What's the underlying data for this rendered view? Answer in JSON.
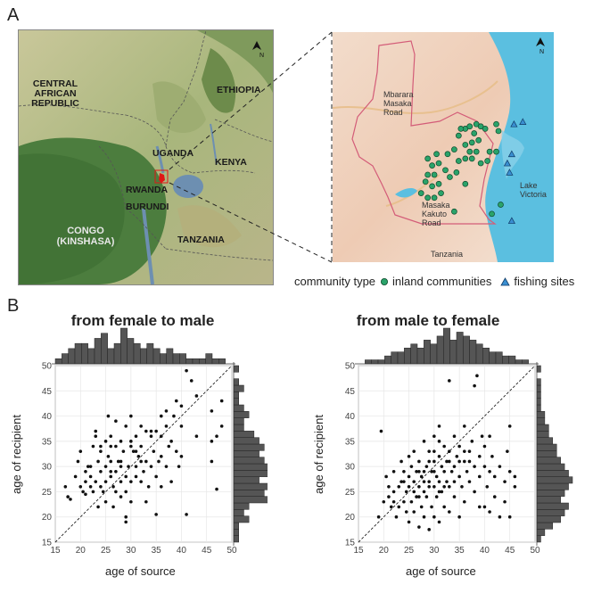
{
  "panels": {
    "a": "A",
    "b": "B"
  },
  "map_left": {
    "countries": [
      "CENTRAL AFRICAN REPUBLIC",
      "ETHIOPIA",
      "UGANDA",
      "KENYA",
      "CONGO (KINSHASA)",
      "RWANDA",
      "BURUNDI",
      "TANZANIA"
    ]
  },
  "map_right": {
    "labels": {
      "road1": "Mbarara Masaka Road",
      "road2": "Masaka Kakuto Road",
      "lake": "Lake Victoria",
      "country": "Tanzania"
    },
    "north": "N",
    "inland_points": [
      [
        0.57,
        0.45
      ],
      [
        0.6,
        0.42
      ],
      [
        0.62,
        0.41
      ],
      [
        0.65,
        0.4
      ],
      [
        0.67,
        0.41
      ],
      [
        0.69,
        0.42
      ],
      [
        0.6,
        0.49
      ],
      [
        0.63,
        0.48
      ],
      [
        0.66,
        0.47
      ],
      [
        0.55,
        0.51
      ],
      [
        0.52,
        0.53
      ],
      [
        0.47,
        0.53
      ],
      [
        0.43,
        0.55
      ],
      [
        0.45,
        0.58
      ],
      [
        0.48,
        0.57
      ],
      [
        0.51,
        0.6
      ],
      [
        0.46,
        0.62
      ],
      [
        0.42,
        0.65
      ],
      [
        0.45,
        0.67
      ],
      [
        0.4,
        0.7
      ],
      [
        0.43,
        0.72
      ],
      [
        0.46,
        0.72
      ],
      [
        0.49,
        0.7
      ],
      [
        0.53,
        0.63
      ],
      [
        0.57,
        0.56
      ],
      [
        0.6,
        0.55
      ],
      [
        0.62,
        0.52
      ],
      [
        0.65,
        0.52
      ],
      [
        0.43,
        0.62
      ],
      [
        0.58,
        0.42
      ],
      [
        0.64,
        0.44
      ],
      [
        0.71,
        0.52
      ],
      [
        0.67,
        0.57
      ],
      [
        0.74,
        0.4
      ],
      [
        0.56,
        0.61
      ],
      [
        0.55,
        0.78
      ],
      [
        0.63,
        0.55
      ],
      [
        0.7,
        0.56
      ],
      [
        0.75,
        0.43
      ],
      [
        0.74,
        0.52
      ],
      [
        0.72,
        0.79
      ],
      [
        0.76,
        0.75
      ],
      [
        0.6,
        0.66
      ],
      [
        0.48,
        0.66
      ]
    ],
    "fishing_points": [
      [
        0.82,
        0.4
      ],
      [
        0.81,
        0.53
      ],
      [
        0.8,
        0.61
      ],
      [
        0.81,
        0.82
      ],
      [
        0.86,
        0.39
      ],
      [
        0.79,
        0.57
      ]
    ]
  },
  "legend": {
    "title": "community type",
    "inland": "inland communities",
    "fishing": "fishing sites",
    "inland_color": "#2aa36a",
    "fishing_color": "#3a8fd1"
  },
  "chart_data": [
    {
      "type": "scatter",
      "title": "from female to male",
      "xlabel": "age of source",
      "ylabel": "age of recipient",
      "xlim": [
        15,
        50
      ],
      "ylim": [
        15,
        50
      ],
      "xticks": [
        15,
        20,
        25,
        30,
        35,
        40,
        45,
        50
      ],
      "yticks": [
        15,
        20,
        25,
        30,
        35,
        40,
        45,
        50
      ],
      "points": [
        [
          17,
          26
        ],
        [
          17.5,
          24
        ],
        [
          18,
          23.5
        ],
        [
          19,
          28
        ],
        [
          19.5,
          31
        ],
        [
          20,
          26
        ],
        [
          20,
          33
        ],
        [
          20.5,
          25
        ],
        [
          21,
          29
        ],
        [
          21,
          27
        ],
        [
          21,
          24.5
        ],
        [
          21.5,
          30
        ],
        [
          22,
          26
        ],
        [
          22,
          28
        ],
        [
          22.5,
          34
        ],
        [
          22.5,
          25
        ],
        [
          23,
          37
        ],
        [
          23,
          36
        ],
        [
          23,
          27
        ],
        [
          23.5,
          31
        ],
        [
          23.5,
          22
        ],
        [
          24,
          26
        ],
        [
          24,
          33
        ],
        [
          24,
          29
        ],
        [
          24.5,
          25
        ],
        [
          25,
          35
        ],
        [
          25,
          30
        ],
        [
          25,
          27
        ],
        [
          25,
          23
        ],
        [
          25.5,
          40
        ],
        [
          25.5,
          32
        ],
        [
          26,
          28
        ],
        [
          26,
          29
        ],
        [
          26,
          36
        ],
        [
          26,
          31
        ],
        [
          26.5,
          26
        ],
        [
          26.5,
          22
        ],
        [
          27,
          34
        ],
        [
          27,
          29
        ],
        [
          27,
          25
        ],
        [
          27,
          39
        ],
        [
          27.5,
          31
        ],
        [
          28,
          35
        ],
        [
          28,
          27
        ],
        [
          28,
          30
        ],
        [
          28,
          24
        ],
        [
          28.5,
          33
        ],
        [
          29,
          38
        ],
        [
          29,
          25
        ],
        [
          29,
          20
        ],
        [
          29,
          19
        ],
        [
          29.5,
          30
        ],
        [
          30,
          35
        ],
        [
          30,
          27
        ],
        [
          30,
          40
        ],
        [
          30,
          23
        ],
        [
          30.5,
          33
        ],
        [
          31,
          28
        ],
        [
          31,
          36
        ],
        [
          31,
          30
        ],
        [
          31.5,
          32
        ],
        [
          32,
          38
        ],
        [
          32,
          27
        ],
        [
          32,
          34
        ],
        [
          32.5,
          29
        ],
        [
          33,
          31
        ],
        [
          33,
          37
        ],
        [
          33,
          23
        ],
        [
          33.5,
          26
        ],
        [
          34,
          37
        ],
        [
          34,
          30
        ],
        [
          34.5,
          33
        ],
        [
          35,
          37
        ],
        [
          35,
          28
        ],
        [
          35,
          20.5
        ],
        [
          35.5,
          31
        ],
        [
          36,
          32
        ],
        [
          36,
          36
        ],
        [
          36,
          26
        ],
        [
          37,
          38
        ],
        [
          37,
          30
        ],
        [
          37.5,
          34
        ],
        [
          38,
          35
        ],
        [
          38,
          27
        ],
        [
          38.5,
          40
        ],
        [
          39,
          43
        ],
        [
          39,
          33
        ],
        [
          39.5,
          30
        ],
        [
          40,
          38
        ],
        [
          40,
          42
        ],
        [
          40,
          32
        ],
        [
          41,
          49
        ],
        [
          41,
          20.5
        ],
        [
          42,
          47
        ],
        [
          43,
          44
        ],
        [
          43,
          36
        ],
        [
          46,
          41
        ],
        [
          46,
          35
        ],
        [
          46,
          31
        ],
        [
          47,
          36
        ],
        [
          47,
          25.5
        ],
        [
          48,
          43
        ],
        [
          48,
          38
        ],
        [
          30,
          34
        ],
        [
          34,
          36
        ],
        [
          36,
          40
        ],
        [
          24,
          34
        ],
        [
          22,
          30
        ],
        [
          31,
          33
        ],
        [
          28,
          31
        ],
        [
          26,
          34
        ],
        [
          37,
          41
        ],
        [
          32,
          31
        ],
        [
          29,
          28
        ]
      ],
      "x_hist": [
        1,
        2,
        3,
        4,
        4,
        3,
        5,
        6,
        3,
        4,
        7,
        5,
        4,
        3,
        4,
        3,
        2,
        3,
        2,
        2,
        1,
        1,
        1,
        2,
        1,
        1,
        0
      ],
      "y_hist": [
        1,
        1,
        1,
        3,
        2,
        3,
        7,
        6,
        7,
        5,
        7,
        7,
        6,
        5,
        6,
        5,
        4,
        2,
        2,
        3,
        2,
        1,
        1,
        2,
        1,
        0,
        1
      ]
    },
    {
      "type": "scatter",
      "title": "from male to female",
      "xlabel": "age of source",
      "ylabel": "age of recipient",
      "xlim": [
        15,
        50
      ],
      "ylim": [
        15,
        50
      ],
      "xticks": [
        15,
        20,
        25,
        30,
        35,
        40,
        45,
        50
      ],
      "yticks": [
        15,
        20,
        25,
        30,
        35,
        40,
        45,
        50
      ],
      "points": [
        [
          19,
          20
        ],
        [
          19.5,
          37
        ],
        [
          20,
          23
        ],
        [
          20.5,
          28
        ],
        [
          21,
          24
        ],
        [
          21,
          26
        ],
        [
          21.5,
          22
        ],
        [
          22,
          29
        ],
        [
          22,
          25
        ],
        [
          22.5,
          20
        ],
        [
          23,
          26
        ],
        [
          23,
          22
        ],
        [
          23.5,
          31
        ],
        [
          23.5,
          27
        ],
        [
          24,
          23
        ],
        [
          24,
          29
        ],
        [
          24.5,
          21
        ],
        [
          24.5,
          25
        ],
        [
          25,
          28
        ],
        [
          25,
          32
        ],
        [
          25,
          19
        ],
        [
          25.5,
          23
        ],
        [
          25.5,
          30
        ],
        [
          26,
          27
        ],
        [
          26,
          21
        ],
        [
          26,
          33
        ],
        [
          26.5,
          24
        ],
        [
          26.5,
          29
        ],
        [
          27,
          26
        ],
        [
          27,
          18
        ],
        [
          27,
          31
        ],
        [
          27.5,
          22
        ],
        [
          27.5,
          28
        ],
        [
          28,
          25
        ],
        [
          28,
          35
        ],
        [
          28,
          20
        ],
        [
          28.5,
          30
        ],
        [
          28.5,
          24
        ],
        [
          29,
          27
        ],
        [
          29,
          33
        ],
        [
          29,
          17.5
        ],
        [
          29.5,
          22
        ],
        [
          29.5,
          29
        ],
        [
          30,
          26
        ],
        [
          30,
          31
        ],
        [
          30,
          36
        ],
        [
          30,
          20
        ],
        [
          30.5,
          28
        ],
        [
          30.5,
          24
        ],
        [
          31,
          32
        ],
        [
          31,
          27
        ],
        [
          31,
          38
        ],
        [
          31,
          19
        ],
        [
          31.5,
          25
        ],
        [
          31.5,
          30
        ],
        [
          32,
          29
        ],
        [
          32,
          34
        ],
        [
          32,
          22
        ],
        [
          32.5,
          27
        ],
        [
          32.5,
          31
        ],
        [
          33,
          47
        ],
        [
          33,
          26
        ],
        [
          33,
          33
        ],
        [
          33,
          21
        ],
        [
          33.5,
          29
        ],
        [
          34,
          30
        ],
        [
          34,
          36
        ],
        [
          34,
          24
        ],
        [
          34.5,
          32
        ],
        [
          35,
          28
        ],
        [
          35,
          34
        ],
        [
          35,
          20
        ],
        [
          35.5,
          26
        ],
        [
          36,
          31
        ],
        [
          36,
          38
        ],
        [
          36,
          23
        ],
        [
          36.5,
          29
        ],
        [
          37,
          33
        ],
        [
          37,
          27
        ],
        [
          37.5,
          35
        ],
        [
          38,
          30
        ],
        [
          38,
          46
        ],
        [
          38,
          25
        ],
        [
          38.5,
          48
        ],
        [
          39,
          32
        ],
        [
          39,
          28
        ],
        [
          39,
          22
        ],
        [
          39.5,
          36
        ],
        [
          40,
          30
        ],
        [
          40,
          34
        ],
        [
          40,
          22
        ],
        [
          40.5,
          26
        ],
        [
          41,
          29
        ],
        [
          41,
          36
        ],
        [
          41,
          21
        ],
        [
          41.5,
          32
        ],
        [
          42,
          24
        ],
        [
          42,
          28
        ],
        [
          43,
          30
        ],
        [
          43,
          20
        ],
        [
          44,
          27
        ],
        [
          44,
          23
        ],
        [
          44.5,
          33
        ],
        [
          45,
          29
        ],
        [
          45,
          38
        ],
        [
          45,
          20
        ],
        [
          46,
          28
        ],
        [
          46,
          26
        ],
        [
          30,
          33
        ],
        [
          31,
          35
        ],
        [
          29,
          31
        ],
        [
          27,
          29
        ],
        [
          26,
          25
        ],
        [
          28,
          27
        ],
        [
          32,
          26
        ],
        [
          34,
          27
        ],
        [
          24,
          27
        ],
        [
          22,
          23
        ],
        [
          35,
          31
        ],
        [
          33,
          31
        ],
        [
          30,
          29
        ],
        [
          31,
          25
        ],
        [
          29,
          26
        ],
        [
          28,
          29
        ],
        [
          37,
          31
        ],
        [
          36,
          33
        ],
        [
          25,
          26
        ],
        [
          27,
          24
        ]
      ],
      "x_hist": [
        0,
        1,
        1,
        1,
        2,
        3,
        3,
        4,
        5,
        4,
        6,
        5,
        7,
        9,
        6,
        8,
        7,
        6,
        5,
        4,
        3,
        3,
        2,
        2,
        1,
        1,
        0
      ],
      "y_hist": [
        1,
        2,
        4,
        6,
        7,
        8,
        6,
        7,
        8,
        9,
        8,
        7,
        6,
        5,
        5,
        4,
        3,
        3,
        2,
        2,
        1,
        1,
        1,
        1,
        1,
        0,
        1
      ]
    }
  ]
}
